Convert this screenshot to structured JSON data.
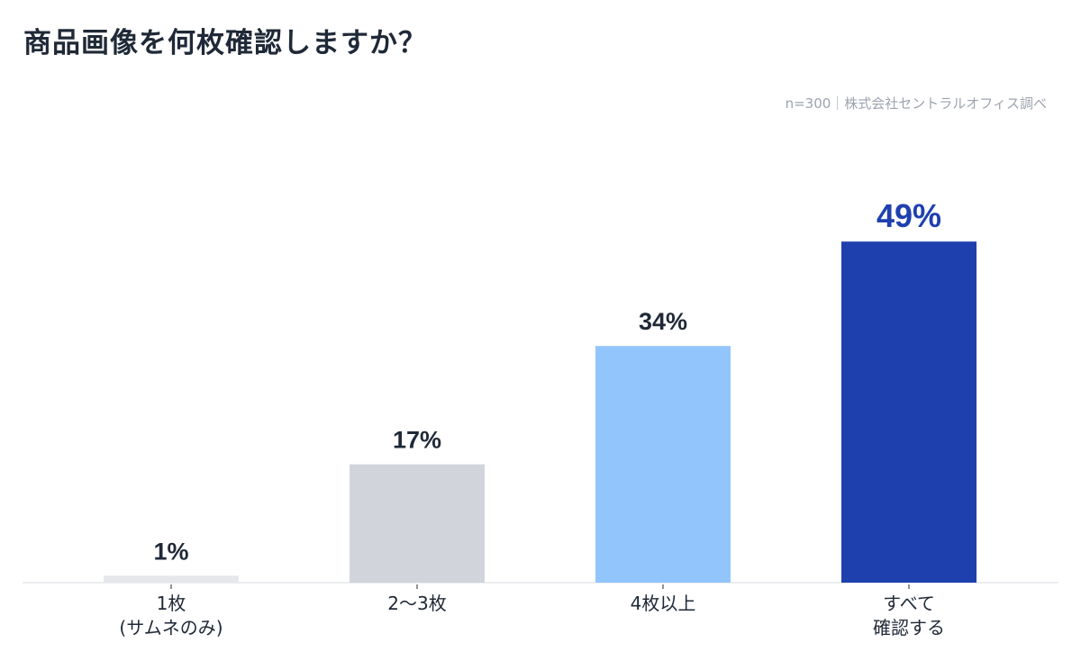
{
  "chart_data": {
    "type": "bar",
    "title": "商品画像を何枚確認しますか？",
    "source_note": "n=300｜株式会社セントラルオフィス調べ",
    "categories": [
      [
        "1枚",
        "(サムネのみ)"
      ],
      [
        "2〜3枚"
      ],
      [
        "4枚以上"
      ],
      [
        "すべて",
        "確認する"
      ]
    ],
    "values": [
      1,
      17,
      34,
      49
    ],
    "value_labels": [
      "1%",
      "17%",
      "34%",
      "49%"
    ],
    "unit": "%",
    "colors": [
      "#e5e7eb",
      "#d1d5db",
      "#93c5fd",
      "#1e40af"
    ],
    "highlight_index": 3,
    "highlight_label_color": "#1e40af",
    "grid": false,
    "legend": "none"
  }
}
